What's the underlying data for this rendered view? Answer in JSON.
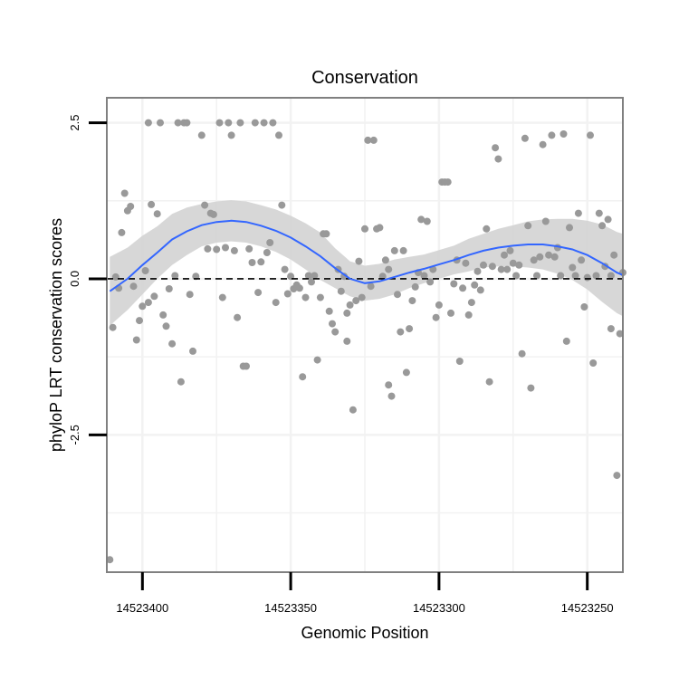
{
  "chart_data": {
    "type": "scatter",
    "title": "Conservation",
    "xlabel": "Genomic Position",
    "ylabel": "phyloP LRT conservation scores",
    "x_reversed": true,
    "xlim": [
      14523412,
      14523238
    ],
    "ylim": [
      -4.7,
      2.9
    ],
    "x_ticks": [
      14523400,
      14523350,
      14523300,
      14523250
    ],
    "x_tick_labels": [
      "14523400",
      "14523350",
      "14523300",
      "14523250"
    ],
    "y_ticks": [
      2.5,
      0.0,
      -2.5
    ],
    "y_tick_labels": [
      "2.5",
      "0.0",
      "-2.5"
    ],
    "x_minor_gridlines": [
      14523375,
      14523325,
      14523275
    ],
    "y_minor_gridlines": [
      1.25,
      -1.25,
      -3.75
    ],
    "reference_line": {
      "y": 0,
      "style": "dashed",
      "color": "#000000"
    },
    "colors": {
      "points": "#999999",
      "smooth_line": "#3366ff",
      "confidence_band": "#d3d3d3",
      "grid": "#f2f2f2",
      "panel_border": "#808080"
    },
    "points": [
      [
        14523411,
        -4.5
      ],
      [
        14523410,
        -0.78
      ],
      [
        14523409,
        0.03
      ],
      [
        14523408,
        -0.15
      ],
      [
        14523407,
        0.74
      ],
      [
        14523406,
        1.37
      ],
      [
        14523405,
        1.09
      ],
      [
        14523404,
        1.16
      ],
      [
        14523403,
        -0.12
      ],
      [
        14523402,
        -0.98
      ],
      [
        14523401,
        -0.67
      ],
      [
        14523400,
        -0.44
      ],
      [
        14523399,
        0.13
      ],
      [
        14523398,
        -0.38
      ],
      [
        14523398,
        2.5
      ],
      [
        14523397,
        1.19
      ],
      [
        14523396,
        -0.28
      ],
      [
        14523395,
        1.04
      ],
      [
        14523394,
        2.5
      ],
      [
        14523393,
        -0.58
      ],
      [
        14523392,
        -0.76
      ],
      [
        14523391,
        -0.16
      ],
      [
        14523390,
        -1.04
      ],
      [
        14523389,
        0.05
      ],
      [
        14523388,
        2.5
      ],
      [
        14523387,
        -1.65
      ],
      [
        14523386,
        2.5
      ],
      [
        14523385,
        2.5
      ],
      [
        14523384,
        -0.25
      ],
      [
        14523383,
        -1.16
      ],
      [
        14523382,
        0.04
      ],
      [
        14523380,
        2.3
      ],
      [
        14523379,
        1.18
      ],
      [
        14523378,
        0.48
      ],
      [
        14523377,
        1.05
      ],
      [
        14523376,
        1.03
      ],
      [
        14523375,
        0.47
      ],
      [
        14523374,
        2.5
      ],
      [
        14523373,
        -0.3
      ],
      [
        14523372,
        0.5
      ],
      [
        14523371,
        2.5
      ],
      [
        14523370,
        2.3
      ],
      [
        14523369,
        0.45
      ],
      [
        14523368,
        -0.62
      ],
      [
        14523367,
        2.5
      ],
      [
        14523366,
        -1.4
      ],
      [
        14523365,
        -1.4
      ],
      [
        14523364,
        0.48
      ],
      [
        14523363,
        0.26
      ],
      [
        14523362,
        2.5
      ],
      [
        14523361,
        -0.22
      ],
      [
        14523360,
        0.27
      ],
      [
        14523359,
        2.5
      ],
      [
        14523358,
        0.42
      ],
      [
        14523357,
        0.58
      ],
      [
        14523356,
        2.5
      ],
      [
        14523355,
        -0.38
      ],
      [
        14523354,
        2.3
      ],
      [
        14523353,
        1.18
      ],
      [
        14523352,
        0.15
      ],
      [
        14523351,
        -0.24
      ],
      [
        14523350,
        0.04
      ],
      [
        14523349,
        -0.16
      ],
      [
        14523348,
        -0.1
      ],
      [
        14523347,
        -0.15
      ],
      [
        14523346,
        -1.57
      ],
      [
        14523345,
        -0.3
      ],
      [
        14523344,
        0.05
      ],
      [
        14523343,
        -0.05
      ],
      [
        14523342,
        0.05
      ],
      [
        14523341,
        -1.3
      ],
      [
        14523340,
        -0.3
      ],
      [
        14523339,
        0.72
      ],
      [
        14523338,
        0.72
      ],
      [
        14523337,
        -0.52
      ],
      [
        14523336,
        -0.72
      ],
      [
        14523335,
        -0.85
      ],
      [
        14523334,
        0.15
      ],
      [
        14523333,
        -0.2
      ],
      [
        14523332,
        0.04
      ],
      [
        14523331,
        -0.55
      ],
      [
        14523331,
        -1.0
      ],
      [
        14523330,
        -0.42
      ],
      [
        14523329,
        -2.1
      ],
      [
        14523328,
        -0.35
      ],
      [
        14523327,
        0.28
      ],
      [
        14523326,
        -0.3
      ],
      [
        14523325,
        0.8
      ],
      [
        14523324,
        2.22
      ],
      [
        14523323,
        -0.12
      ],
      [
        14523322,
        2.22
      ],
      [
        14523321,
        0.8
      ],
      [
        14523320,
        0.82
      ],
      [
        14523319,
        0.04
      ],
      [
        14523318,
        0.3
      ],
      [
        14523317,
        0.15
      ],
      [
        14523317,
        -1.7
      ],
      [
        14523316,
        -1.88
      ],
      [
        14523315,
        0.45
      ],
      [
        14523314,
        -0.25
      ],
      [
        14523313,
        -0.85
      ],
      [
        14523312,
        0.45
      ],
      [
        14523311,
        -1.5
      ],
      [
        14523310,
        -0.8
      ],
      [
        14523309,
        -0.35
      ],
      [
        14523308,
        -0.13
      ],
      [
        14523307,
        0.1
      ],
      [
        14523306,
        0.95
      ],
      [
        14523305,
        0.05
      ],
      [
        14523304,
        0.92
      ],
      [
        14523303,
        -0.05
      ],
      [
        14523302,
        0.15
      ],
      [
        14523301,
        -0.62
      ],
      [
        14523300,
        -0.42
      ],
      [
        14523299,
        1.55
      ],
      [
        14523298,
        1.55
      ],
      [
        14523297,
        1.55
      ],
      [
        14523296,
        -0.55
      ],
      [
        14523295,
        -0.08
      ],
      [
        14523294,
        0.3
      ],
      [
        14523293,
        -1.32
      ],
      [
        14523292,
        -0.15
      ],
      [
        14523291,
        0.25
      ],
      [
        14523290,
        -0.58
      ],
      [
        14523289,
        -0.38
      ],
      [
        14523288,
        -0.1
      ],
      [
        14523287,
        0.12
      ],
      [
        14523286,
        -0.18
      ],
      [
        14523285,
        0.22
      ],
      [
        14523284,
        0.8
      ],
      [
        14523283,
        -1.65
      ],
      [
        14523282,
        0.2
      ],
      [
        14523281,
        2.1
      ],
      [
        14523280,
        1.92
      ],
      [
        14523279,
        0.15
      ],
      [
        14523278,
        0.38
      ],
      [
        14523277,
        0.15
      ],
      [
        14523276,
        0.45
      ],
      [
        14523275,
        0.25
      ],
      [
        14523274,
        0.05
      ],
      [
        14523273,
        0.22
      ],
      [
        14523272,
        -1.2
      ],
      [
        14523271,
        2.25
      ],
      [
        14523270,
        0.85
      ],
      [
        14523269,
        -1.75
      ],
      [
        14523268,
        0.3
      ],
      [
        14523267,
        0.05
      ],
      [
        14523266,
        0.35
      ],
      [
        14523265,
        2.15
      ],
      [
        14523264,
        0.92
      ],
      [
        14523263,
        0.38
      ],
      [
        14523262,
        2.3
      ],
      [
        14523261,
        0.35
      ],
      [
        14523260,
        0.5
      ],
      [
        14523259,
        0.05
      ],
      [
        14523258,
        2.32
      ],
      [
        14523257,
        -1.0
      ],
      [
        14523256,
        0.82
      ],
      [
        14523255,
        0.18
      ],
      [
        14523254,
        0.05
      ],
      [
        14523253,
        1.05
      ],
      [
        14523252,
        0.3
      ],
      [
        14523251,
        -0.45
      ],
      [
        14523250,
        0.02
      ],
      [
        14523249,
        2.3
      ],
      [
        14523248,
        -1.35
      ],
      [
        14523247,
        0.05
      ],
      [
        14523246,
        1.05
      ],
      [
        14523245,
        0.85
      ],
      [
        14523244,
        0.2
      ],
      [
        14523243,
        0.95
      ],
      [
        14523242,
        0.05
      ],
      [
        14523242,
        -0.8
      ],
      [
        14523241,
        0.38
      ],
      [
        14523240,
        -3.15
      ],
      [
        14523239,
        -0.88
      ],
      [
        14523238,
        0.1
      ]
    ],
    "smooth": {
      "x": [
        14523411,
        14523405,
        14523400,
        14523395,
        14523390,
        14523385,
        14523380,
        14523375,
        14523370,
        14523365,
        14523360,
        14523355,
        14523350,
        14523345,
        14523340,
        14523335,
        14523330,
        14523325,
        14523320,
        14523315,
        14523310,
        14523305,
        14523300,
        14523295,
        14523290,
        14523285,
        14523280,
        14523275,
        14523270,
        14523265,
        14523260,
        14523255,
        14523250,
        14523245,
        14523240,
        14523238
      ],
      "y": [
        -0.2,
        0.0,
        0.22,
        0.42,
        0.63,
        0.76,
        0.86,
        0.91,
        0.93,
        0.91,
        0.85,
        0.77,
        0.66,
        0.52,
        0.36,
        0.17,
        0.0,
        -0.07,
        -0.04,
        0.03,
        0.1,
        0.16,
        0.23,
        0.3,
        0.38,
        0.45,
        0.5,
        0.53,
        0.55,
        0.55,
        0.52,
        0.47,
        0.38,
        0.25,
        0.1,
        0.06
      ],
      "ci_lower": [
        -0.75,
        -0.5,
        -0.25,
        0.0,
        0.22,
        0.38,
        0.52,
        0.58,
        0.6,
        0.58,
        0.52,
        0.43,
        0.31,
        0.15,
        -0.02,
        -0.15,
        -0.28,
        -0.35,
        -0.32,
        -0.25,
        -0.15,
        -0.07,
        0.0,
        0.07,
        0.12,
        0.18,
        0.2,
        0.2,
        0.18,
        0.15,
        0.08,
        -0.02,
        -0.17,
        -0.37,
        -0.55,
        -0.6
      ],
      "ci_upper": [
        0.35,
        0.5,
        0.69,
        0.84,
        1.04,
        1.14,
        1.2,
        1.24,
        1.26,
        1.24,
        1.18,
        1.11,
        1.01,
        0.89,
        0.74,
        0.49,
        0.28,
        0.21,
        0.24,
        0.31,
        0.35,
        0.39,
        0.46,
        0.53,
        0.64,
        0.72,
        0.8,
        0.86,
        0.92,
        0.95,
        0.96,
        0.96,
        0.93,
        0.87,
        0.75,
        0.72
      ]
    }
  }
}
